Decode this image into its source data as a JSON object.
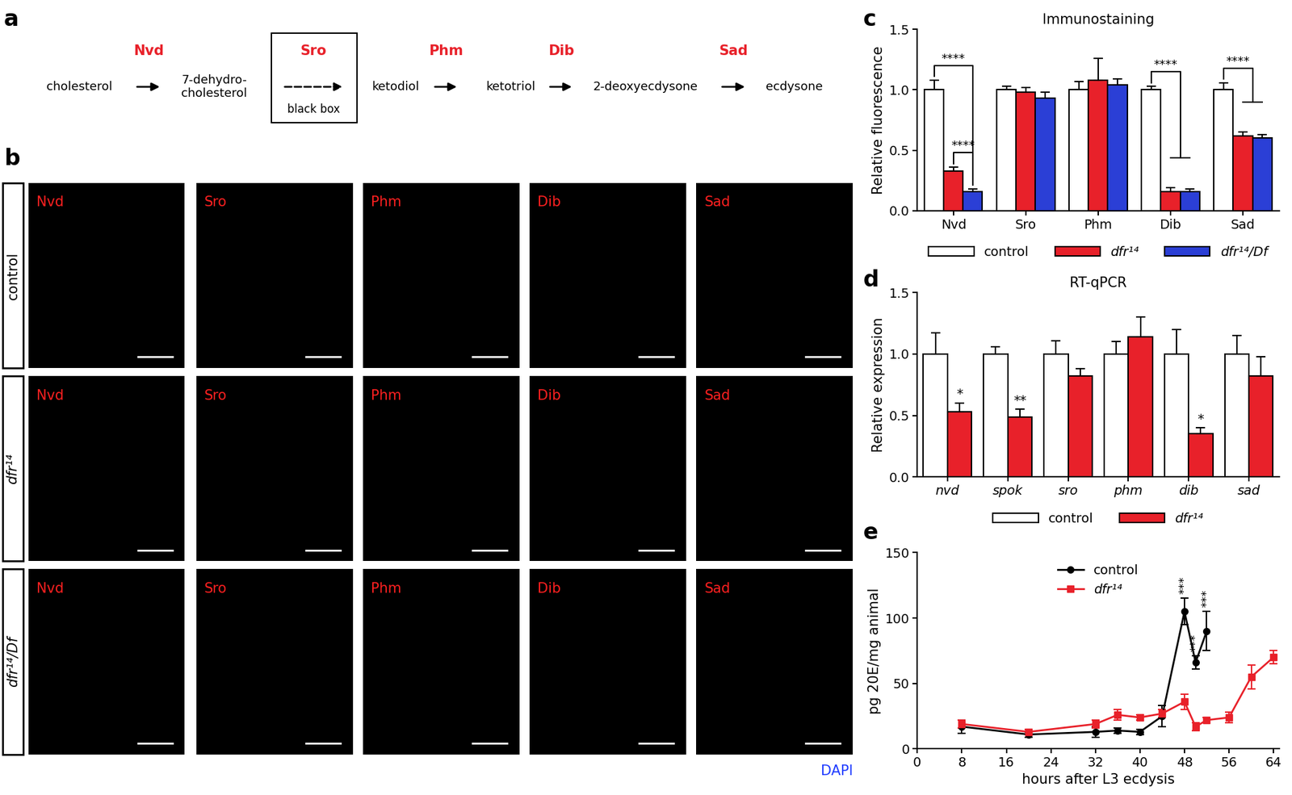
{
  "panel_labels": [
    "a",
    "b",
    "c",
    "d",
    "e"
  ],
  "pathway": {
    "compounds": [
      "cholesterol",
      "7-dehydro-\ncholesterol",
      "ketodiol",
      "ketotriol",
      "2-deoxyecdysone",
      "ecdysone"
    ],
    "enzymes": [
      "Nvd",
      "Sro",
      "Phm",
      "Dib",
      "Sad"
    ],
    "unknown_step": {
      "enzyme": "Sro",
      "label": "black box"
    }
  },
  "images": {
    "rows": [
      "control",
      "dfr¹⁴",
      "dfr¹⁴/Df"
    ],
    "columns": [
      "Nvd",
      "Sro",
      "Phm",
      "Dib",
      "Sad"
    ],
    "counterstain": "DAPI"
  },
  "chart_data": [
    {
      "type": "bar",
      "title": "Immunostaining",
      "y_label": "Relative fluorescence",
      "categories": [
        "Nvd",
        "Sro",
        "Phm",
        "Dib",
        "Sad"
      ],
      "series": [
        {
          "name": "control",
          "color": "#ffffff",
          "values": [
            1.0,
            1.0,
            1.0,
            1.0,
            1.0
          ],
          "errors": [
            0.08,
            0.03,
            0.07,
            0.03,
            0.06
          ]
        },
        {
          "name": "dfr¹⁴",
          "color": "#e8212a",
          "values": [
            0.33,
            0.98,
            1.08,
            0.16,
            0.62
          ],
          "errors": [
            0.03,
            0.04,
            0.18,
            0.03,
            0.03
          ]
        },
        {
          "name": "dfr¹⁴/Df",
          "color": "#2b3fd6",
          "values": [
            0.16,
            0.93,
            1.04,
            0.16,
            0.6
          ],
          "errors": [
            0.02,
            0.05,
            0.05,
            0.02,
            0.03
          ]
        }
      ],
      "ylim": [
        0.0,
        1.5
      ],
      "yticks": [
        0.0,
        0.5,
        1.0,
        1.5
      ],
      "legend": "bottom",
      "annotations": [
        {
          "text": "****",
          "category": "Nvd",
          "from": "control",
          "to": [
            "dfr¹⁴/Df"
          ]
        },
        {
          "text": "****",
          "category": "Nvd",
          "from": "dfr¹⁴",
          "to": [
            "dfr¹⁴/Df"
          ]
        },
        {
          "text": "****",
          "category": "Dib",
          "from": "control",
          "to": [
            "dfr¹⁴",
            "dfr¹⁴/Df"
          ]
        },
        {
          "text": "****",
          "category": "Sad",
          "from": "control",
          "to": [
            "dfr¹⁴",
            "dfr¹⁴/Df"
          ]
        }
      ]
    },
    {
      "type": "bar",
      "title": "RT-qPCR",
      "y_label": "Relative expression",
      "categories": [
        "nvd",
        "spok",
        "sro",
        "phm",
        "dib",
        "sad"
      ],
      "series": [
        {
          "name": "control",
          "color": "#ffffff",
          "values": [
            1.0,
            1.0,
            1.0,
            1.0,
            1.0,
            1.0
          ],
          "errors": [
            0.17,
            0.06,
            0.11,
            0.1,
            0.2,
            0.15
          ]
        },
        {
          "name": "dfr¹⁴",
          "color": "#e8212a",
          "values": [
            0.53,
            0.49,
            0.82,
            1.14,
            0.35,
            0.82
          ],
          "errors": [
            0.07,
            0.06,
            0.06,
            0.16,
            0.05,
            0.16
          ]
        }
      ],
      "ylim": [
        0.0,
        1.5
      ],
      "yticks": [
        0.0,
        0.5,
        1.0,
        1.5
      ],
      "legend": "bottom",
      "annotations": [
        {
          "text": "*",
          "category": "nvd",
          "series": "dfr¹⁴"
        },
        {
          "text": "**",
          "category": "spok",
          "series": "dfr¹⁴"
        },
        {
          "text": "*",
          "category": "dib",
          "series": "dfr¹⁴"
        }
      ]
    },
    {
      "type": "line",
      "x_label": "hours after L3 ecdysis",
      "y_label": "pg 20E/mg animal",
      "series": [
        {
          "name": "control",
          "color": "#000000",
          "marker": "circle",
          "x": [
            8,
            20,
            32,
            36,
            40,
            44,
            48,
            50,
            52
          ],
          "values": [
            17,
            11,
            13,
            14,
            13,
            25,
            105,
            66,
            90
          ],
          "errors": [
            5,
            2,
            4,
            2,
            2,
            8,
            10,
            5,
            15
          ]
        },
        {
          "name": "dfr¹⁴",
          "color": "#e8212a",
          "marker": "square",
          "x": [
            8,
            20,
            32,
            36,
            40,
            44,
            48,
            50,
            52,
            56,
            60,
            64
          ],
          "values": [
            19,
            13,
            19,
            26,
            24,
            27,
            36,
            17,
            22,
            24,
            55,
            70
          ],
          "errors": [
            3,
            2,
            3,
            4,
            2,
            3,
            6,
            3,
            2,
            4,
            9,
            5
          ]
        }
      ],
      "xlim": [
        0,
        65
      ],
      "xticks": [
        0,
        8,
        16,
        24,
        32,
        40,
        48,
        56,
        64
      ],
      "ylim": [
        0,
        150
      ],
      "yticks": [
        0,
        50,
        100,
        150
      ],
      "legend": "upper center",
      "annotations": [
        {
          "x": 48,
          "text": "***"
        },
        {
          "x": 50,
          "text": "***"
        },
        {
          "x": 52,
          "text": "***"
        }
      ]
    }
  ]
}
